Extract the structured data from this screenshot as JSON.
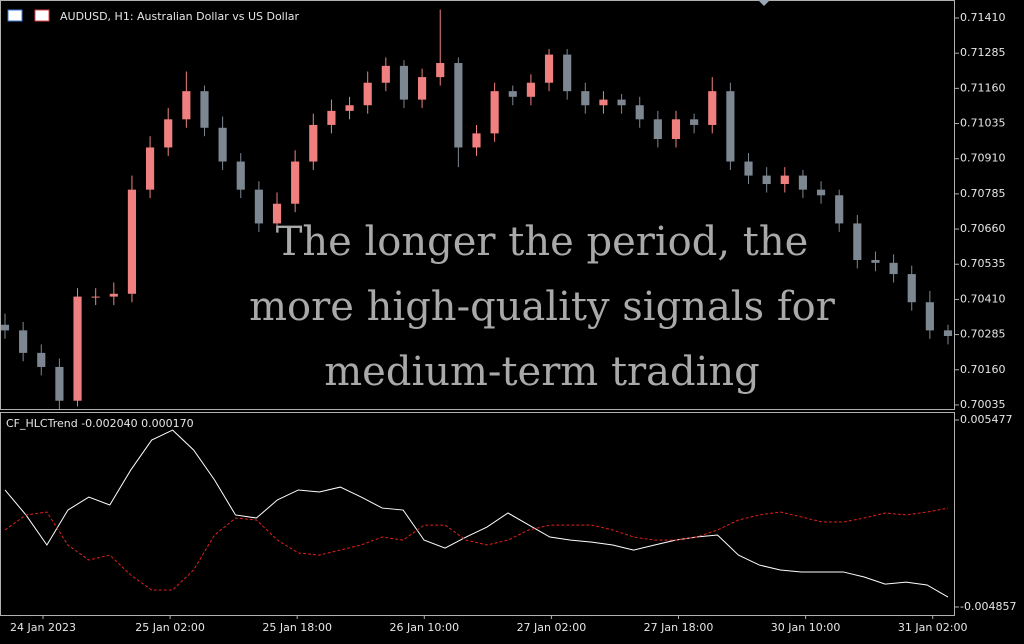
{
  "header": {
    "title": "AUDUSD, H1:  Australian Dollar vs US Dollar"
  },
  "overlay": {
    "lines": [
      "The longer the period, the",
      "more high-quality signals for",
      "medium-term trading"
    ]
  },
  "chart_data": [
    {
      "type": "candlestick",
      "bull_color": "#f08080",
      "bear_color": "#7d8792",
      "open": [
        0.7032,
        0.703,
        0.7022,
        0.7017,
        0.7005,
        0.7042,
        0.7042,
        0.7043,
        0.708,
        0.7095,
        0.7105,
        0.7115,
        0.7102,
        0.709,
        0.708,
        0.7068,
        0.7075,
        0.709,
        0.7103,
        0.7108,
        0.711,
        0.7118,
        0.7124,
        0.7112,
        0.712,
        0.7125,
        0.7095,
        0.71,
        0.7115,
        0.7113,
        0.7118,
        0.7128,
        0.7115,
        0.711,
        0.7112,
        0.711,
        0.7105,
        0.7098,
        0.7105,
        0.7103,
        0.7115,
        0.709,
        0.7085,
        0.7082,
        0.7085,
        0.708,
        0.7078,
        0.7068,
        0.7055,
        0.7054,
        0.705,
        0.704,
        0.703
      ],
      "high": [
        0.7036,
        0.7033,
        0.7025,
        0.702,
        0.7045,
        0.7045,
        0.7047,
        0.7085,
        0.7099,
        0.7109,
        0.7122,
        0.7117,
        0.7106,
        0.7093,
        0.7083,
        0.7079,
        0.7094,
        0.7107,
        0.7112,
        0.7113,
        0.7122,
        0.7127,
        0.7126,
        0.7123,
        0.7144,
        0.7127,
        0.7103,
        0.7118,
        0.7117,
        0.7121,
        0.713,
        0.713,
        0.7118,
        0.7115,
        0.7114,
        0.7113,
        0.7108,
        0.7108,
        0.7107,
        0.712,
        0.7118,
        0.7093,
        0.7088,
        0.7088,
        0.7087,
        0.7083,
        0.708,
        0.7071,
        0.7058,
        0.7057,
        0.7053,
        0.7044,
        0.7032
      ],
      "low": [
        0.7027,
        0.7019,
        0.7014,
        0.7002,
        0.7003,
        0.7039,
        0.7039,
        0.704,
        0.7077,
        0.7092,
        0.7102,
        0.7099,
        0.7087,
        0.7077,
        0.7065,
        0.7065,
        0.7072,
        0.7087,
        0.71,
        0.7105,
        0.7107,
        0.7115,
        0.7109,
        0.7109,
        0.7117,
        0.7088,
        0.7092,
        0.7097,
        0.711,
        0.711,
        0.7115,
        0.7112,
        0.7107,
        0.7107,
        0.7107,
        0.7102,
        0.7095,
        0.7095,
        0.71,
        0.71,
        0.7087,
        0.7082,
        0.7079,
        0.7079,
        0.7077,
        0.7075,
        0.7065,
        0.7052,
        0.7051,
        0.7047,
        0.7037,
        0.7027,
        0.7025
      ],
      "close": [
        0.703,
        0.7022,
        0.7017,
        0.7005,
        0.7042,
        0.7042,
        0.7043,
        0.708,
        0.7095,
        0.7105,
        0.7115,
        0.7102,
        0.709,
        0.708,
        0.7068,
        0.7075,
        0.709,
        0.7103,
        0.7108,
        0.711,
        0.7118,
        0.7124,
        0.7112,
        0.712,
        0.7125,
        0.7095,
        0.71,
        0.7115,
        0.7113,
        0.7118,
        0.7128,
        0.7115,
        0.711,
        0.7112,
        0.711,
        0.7105,
        0.7098,
        0.7105,
        0.7103,
        0.7115,
        0.709,
        0.7085,
        0.7082,
        0.7085,
        0.708,
        0.7078,
        0.7068,
        0.7055,
        0.7054,
        0.705,
        0.704,
        0.703,
        0.7028
      ],
      "ylim": [
        0.70017,
        0.71474
      ],
      "yticks": [
        {
          "value": 0.7141,
          "label": "0.71410"
        },
        {
          "value": 0.71285,
          "label": "0.71285"
        },
        {
          "value": 0.7116,
          "label": "0.71160"
        },
        {
          "value": 0.71035,
          "label": "0.71035"
        },
        {
          "value": 0.7091,
          "label": "0.70910"
        },
        {
          "value": 0.70785,
          "label": "0.70785"
        },
        {
          "value": 0.7066,
          "label": "0.70660"
        },
        {
          "value": 0.70535,
          "label": "0.70535"
        },
        {
          "value": 0.7041,
          "label": "0.70410"
        },
        {
          "value": 0.70285,
          "label": "0.70285"
        },
        {
          "value": 0.7016,
          "label": "0.70160"
        },
        {
          "value": 0.70035,
          "label": "0.70035"
        }
      ]
    },
    {
      "type": "line",
      "title": "CF_HLCTrend -0.002040 0.000170",
      "series": [
        {
          "color": "#ffffff",
          "dash": false,
          "values": [
            0.00161,
            0.00023,
            -0.00143,
            0.0005,
            0.00122,
            0.00078,
            0.00271,
            0.00437,
            0.00492,
            0.00382,
            0.00216,
            0.00023,
            6e-05,
            0.00106,
            0.00161,
            0.0015,
            0.00177,
            0.00122,
            0.00061,
            0.0005,
            -0.00116,
            -0.0016,
            -0.00099,
            -0.00044,
            0.00034,
            -0.00033,
            -0.00099,
            -0.00116,
            -0.00127,
            -0.00143,
            -0.00171,
            -0.00143,
            -0.00116,
            -0.00099,
            -0.00088,
            -0.00199,
            -0.00254,
            -0.00281,
            -0.00292,
            -0.00292,
            -0.00292,
            -0.0032,
            -0.00359,
            -0.00348,
            -0.00364,
            -0.00431
          ]
        },
        {
          "color": "#e0201a",
          "dash": true,
          "values": [
            -0.0006,
            0.00023,
            0.00039,
            -0.00143,
            -0.00226,
            -0.00199,
            -0.00309,
            -0.00392,
            -0.00392,
            -0.00281,
            -0.00088,
            6e-05,
            -5e-05,
            -0.00116,
            -0.00187,
            -0.00199,
            -0.00171,
            -0.00143,
            -0.00099,
            -0.00116,
            -0.00033,
            -0.00033,
            -0.00116,
            -0.00143,
            -0.00116,
            -0.0006,
            -0.00033,
            -0.00033,
            -0.00033,
            -0.0006,
            -0.00099,
            -0.00116,
            -0.00116,
            -0.00099,
            -0.0006,
            -5e-05,
            0.00023,
            0.00039,
            0.00012,
            -0.00016,
            -0.00016,
            6e-05,
            0.00034,
            0.00023,
            0.00039,
            0.00061
          ]
        }
      ],
      "ylim": [
        -0.005299,
        0.005919
      ],
      "yticks": [
        0.005477,
        -0.004857
      ],
      "xtick_labels": [
        "24 Jan 2023",
        "25 Jan 02:00",
        "25 Jan 18:00",
        "26 Jan 10:00",
        "27 Jan 02:00",
        "27 Jan 18:00",
        "30 Jan 10:00",
        "31 Jan 02:00"
      ]
    }
  ]
}
